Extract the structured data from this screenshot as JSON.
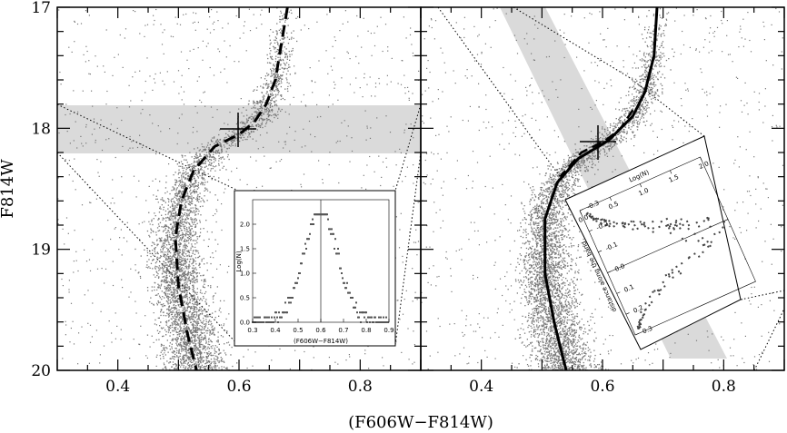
{
  "chart_data": {
    "type": "scatter",
    "xlabel": "(F606W−F814W)",
    "ylabel": "F814W",
    "xlim": [
      0.3,
      0.9
    ],
    "ylim": [
      20,
      17
    ],
    "x_ticks": [
      "0.4",
      "0.6",
      "0.8"
    ],
    "y_ticks": [
      "17",
      "18",
      "19",
      "20"
    ],
    "inset_xticks": [
      "0.3",
      "0.4",
      "0.5",
      "0.6",
      "0.7",
      "0.8",
      "0.9"
    ],
    "inset_yticks": [
      "0.0",
      "0.5",
      "1.0",
      "1.5",
      "2.0"
    ],
    "colors": {
      "points": "#777777",
      "band": "#dadada",
      "curve": "#000000"
    },
    "panels": [
      {
        "name": "left",
        "fiducial": [
          {
            "x": 0.68,
            "y": 17.0
          },
          {
            "x": 0.67,
            "y": 17.3
          },
          {
            "x": 0.66,
            "y": 17.6
          },
          {
            "x": 0.645,
            "y": 17.8
          },
          {
            "x": 0.625,
            "y": 17.95
          },
          {
            "x": 0.6,
            "y": 18.05
          },
          {
            "x": 0.56,
            "y": 18.15
          },
          {
            "x": 0.525,
            "y": 18.35
          },
          {
            "x": 0.505,
            "y": 18.6
          },
          {
            "x": 0.495,
            "y": 18.9
          },
          {
            "x": 0.5,
            "y": 19.3
          },
          {
            "x": 0.515,
            "y": 19.7
          },
          {
            "x": 0.53,
            "y": 20.0
          }
        ],
        "cross": {
          "x": 0.6,
          "y": 18.0
        },
        "band": {
          "y1": 17.8,
          "y2": 18.2
        },
        "inset": {
          "type": "histogram",
          "xlabel": "(F606W−F814W)",
          "ylabel": "Log(N)",
          "xlim": [
            0.3,
            0.9
          ],
          "ylim": [
            0,
            2.5
          ],
          "center": 0.6
        }
      },
      {
        "name": "right",
        "fiducial": [
          {
            "x": 0.69,
            "y": 17.0
          },
          {
            "x": 0.685,
            "y": 17.4
          },
          {
            "x": 0.67,
            "y": 17.7
          },
          {
            "x": 0.65,
            "y": 17.9
          },
          {
            "x": 0.61,
            "y": 18.1
          },
          {
            "x": 0.56,
            "y": 18.25
          },
          {
            "x": 0.525,
            "y": 18.45
          },
          {
            "x": 0.505,
            "y": 18.75
          },
          {
            "x": 0.505,
            "y": 19.2
          },
          {
            "x": 0.52,
            "y": 19.6
          },
          {
            "x": 0.54,
            "y": 20.0
          }
        ],
        "cross": {
          "x": 0.595,
          "y": 18.12
        },
        "inset": {
          "type": "histogram",
          "xlabel": "Log(N)",
          "ylabel": "distance along the band",
          "xticks": [
            "0.0",
            "0.5",
            "1.0",
            "1.5",
            "2.0"
          ],
          "yticks": [
            "-0.3",
            "-0.2",
            "-0.1",
            "0.0",
            "0.1",
            "0.2",
            "0.3"
          ]
        }
      }
    ]
  }
}
